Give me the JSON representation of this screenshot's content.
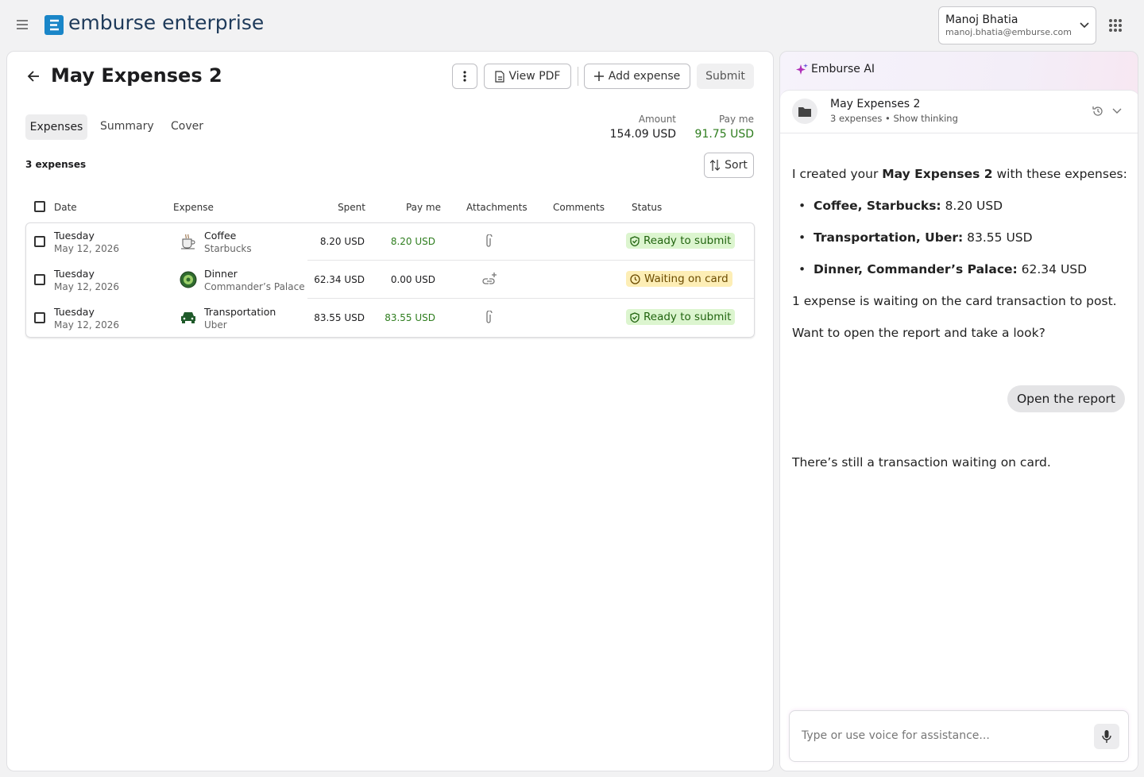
{
  "header": {
    "brand": "emburse enterprise",
    "user_name": "Manoj Bhatia",
    "user_email": "manoj.bhatia@emburse.com"
  },
  "report": {
    "title": "May Expenses 2",
    "actions": [
      "View PDF",
      "Add expense",
      "Submit"
    ],
    "tabs": [
      "Expenses",
      "Summary",
      "Cover"
    ],
    "amount_label": "Amount",
    "amount": "154.09 USD",
    "pay_me_label": "Pay me",
    "pay_me": "91.75 USD",
    "count": "3 expenses",
    "sort": "Sort"
  },
  "table": {
    "columns": [
      "Date",
      "Expense",
      "Spent",
      "Pay me",
      "Attachments",
      "Comments",
      "Status"
    ],
    "rows": [
      {
        "day": "Tuesday",
        "date": "May 12, 2026",
        "expense": "Coffee",
        "merchant": "Starbucks",
        "spent": "8.20 USD",
        "pay_me": "8.20 USD",
        "status": "Ready to submit"
      },
      {
        "day": "Tuesday",
        "date": "May 12, 2026",
        "expense": "Dinner",
        "merchant": "Commander’s Palace",
        "spent": "62.34 USD",
        "pay_me": "0.00 USD",
        "status": "Waiting on card"
      },
      {
        "day": "Tuesday",
        "date": "May 12, 2026",
        "expense": "Transportation",
        "merchant": "Uber",
        "spent": "83.55 USD",
        "pay_me": "83.55 USD",
        "status": "Ready to submit"
      }
    ]
  },
  "assistant": {
    "name": "Emburse AI",
    "thread_title": "May Expenses 2",
    "thread_count": "3 expenses",
    "thread_link": "Show thinking",
    "intro": {
      "before": "I created your ",
      "bold": "May Expenses 2",
      "after": " with these expenses:"
    },
    "items": [
      {
        "label": "Coffee, Starbucks:",
        "value": "8.20 USD"
      },
      {
        "label": "Transportation, Uber:",
        "value": "83.55 USD"
      },
      {
        "label": "Dinner, Commander’s Palace:",
        "value": "62.34 USD"
      }
    ],
    "note": "1 expense is waiting on the card transaction to post.",
    "question": "Want to open the report and take a look?",
    "user_reply": "Open the report",
    "reply": "There’s still a transaction waiting on card.",
    "input_placeholder": "Type or use voice for assistance..."
  }
}
